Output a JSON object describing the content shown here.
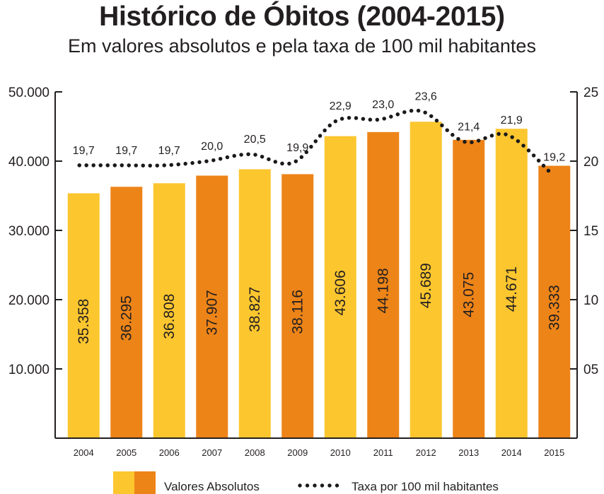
{
  "title": "Histórico de Óbitos (2004-2015)",
  "subtitle": "Em valores absolutos e pela taxa de 100 mil habitantes",
  "colors": {
    "light_bar": "#fcc62f",
    "dark_bar": "#ed8418",
    "dots": "#1a1a1a",
    "axis": "#231f20"
  },
  "chart_data": {
    "type": "bar",
    "categories": [
      "2004",
      "2005",
      "2006",
      "2007",
      "2008",
      "2009",
      "2010",
      "2011",
      "2012",
      "2013",
      "2014",
      "2015"
    ],
    "series": [
      {
        "name": "Valores Absolutos",
        "type": "bar",
        "values": [
          35358,
          36295,
          36808,
          37907,
          38827,
          38116,
          43606,
          44198,
          45689,
          43075,
          44671,
          39333
        ],
        "labels": [
          "35.358",
          "36.295",
          "36.808",
          "37.907",
          "38.827",
          "38.116",
          "43.606",
          "44.198",
          "45.689",
          "43.075",
          "44.671",
          "39.333"
        ]
      },
      {
        "name": "Taxa por 100 mil habitantes",
        "type": "line",
        "style": "dotted",
        "axis": "right",
        "values": [
          19.7,
          19.7,
          19.7,
          20.0,
          20.5,
          19.9,
          22.9,
          23.0,
          23.6,
          21.4,
          21.9,
          19.2
        ],
        "labels": [
          "19,7",
          "19,7",
          "19,7",
          "20,0",
          "20,5",
          "19,9",
          "22,9",
          "23,0",
          "23,6",
          "21,4",
          "21,9",
          "19,2"
        ]
      }
    ],
    "y_left": {
      "ylim": [
        0,
        50000
      ],
      "ticks": [
        "",
        "10.000",
        "20.000",
        "30.000",
        "40.000",
        "50.000"
      ]
    },
    "y_right": {
      "ylim": [
        0,
        25
      ],
      "ticks": [
        "",
        "05",
        "10",
        "15",
        "20",
        "25"
      ]
    },
    "legend": {
      "position": "bottom",
      "entries": [
        "Valores Absolutos",
        "Taxa por 100 mil habitantes"
      ]
    },
    "grid": false
  }
}
